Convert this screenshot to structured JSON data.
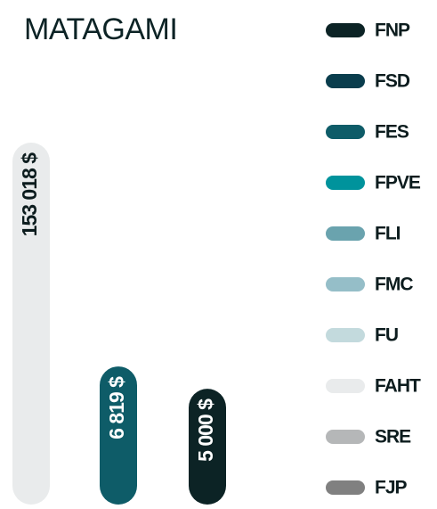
{
  "chart_data": {
    "type": "bar",
    "title": "MATAGAMI",
    "log_scale": true,
    "ylim": [
      1000,
      153018
    ],
    "series": [
      {
        "name": "FNP",
        "color": "#0c2325",
        "values": [
          5000
        ],
        "value_labels": [
          "5 000 $"
        ]
      },
      {
        "name": "FSD",
        "color": "#0a3d4d"
      },
      {
        "name": "FES",
        "color": "#0e5c68",
        "values": [
          6819
        ],
        "value_labels": [
          "6 819 $"
        ]
      },
      {
        "name": "FPVE",
        "color": "#00939c"
      },
      {
        "name": "FLI",
        "color": "#6aa3ae"
      },
      {
        "name": "FMC",
        "color": "#95bec8"
      },
      {
        "name": "FU",
        "color": "#c3dadd"
      },
      {
        "name": "FAHT",
        "color": "#e9ebec",
        "values": [
          153018
        ],
        "value_labels": [
          "153 018 $"
        ]
      },
      {
        "name": "SRE",
        "color": "#b5b7b8"
      },
      {
        "name": "FJP",
        "color": "#808080"
      }
    ]
  }
}
